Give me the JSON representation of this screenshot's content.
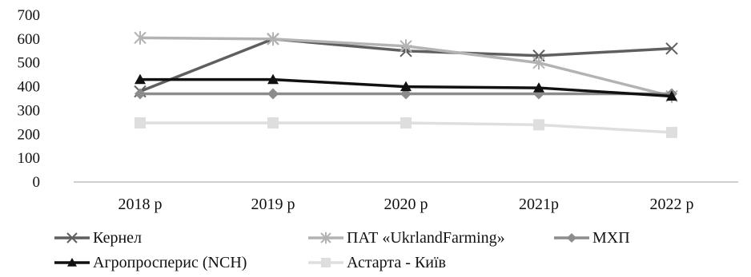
{
  "chart_data": {
    "type": "line",
    "categories": [
      "2018 р",
      "2019 р",
      "2020 р",
      "2021р",
      "2022 р"
    ],
    "ylim": [
      0,
      700
    ],
    "yticks": [
      0,
      100,
      200,
      300,
      400,
      500,
      600,
      700
    ],
    "grid": false,
    "legend_position": "bottom",
    "series": [
      {
        "name": "Кернел",
        "values": [
          380,
          600,
          550,
          530,
          560
        ],
        "color": "#5f5f5f",
        "marker": "x"
      },
      {
        "name": "ПАТ «UkrlandFarming»",
        "values": [
          605,
          600,
          570,
          500,
          360
        ],
        "color": "#b3b3b3",
        "marker": "asterisk"
      },
      {
        "name": "МХП",
        "values": [
          370,
          370,
          370,
          370,
          370
        ],
        "color": "#8c8c8c",
        "marker": "diamond"
      },
      {
        "name": "Агропросперис (NCH)",
        "values": [
          430,
          430,
          400,
          395,
          360
        ],
        "color": "#111111",
        "marker": "triangle"
      },
      {
        "name": "Астарта - Київ",
        "values": [
          248,
          248,
          248,
          240,
          208
        ],
        "color": "#dedede",
        "marker": "square"
      }
    ]
  }
}
